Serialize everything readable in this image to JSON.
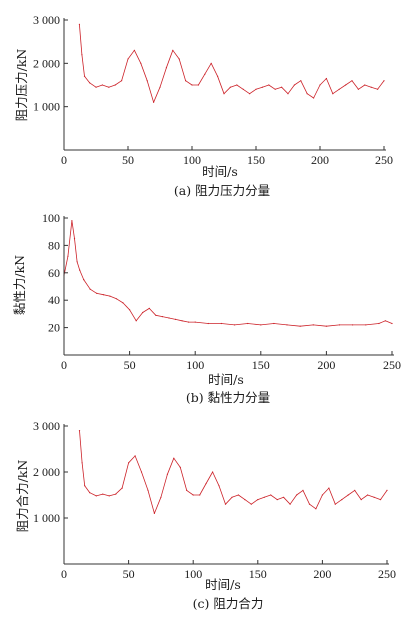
{
  "colors": {
    "series": "#cc2229",
    "axis": "#333333"
  },
  "chart_data": [
    {
      "type": "line",
      "caption": "(a) 阻力压力分量",
      "xlabel": "时间/s",
      "ylabel": "阻力压力/kN",
      "xlim": [
        0,
        250
      ],
      "ylim": [
        0,
        3000
      ],
      "xticks": [
        "0",
        "50",
        "100",
        "150",
        "200",
        "250"
      ],
      "yticks": [
        "1 000",
        "2 000",
        "3 000"
      ],
      "ytick_values": [
        1000,
        2000,
        3000
      ],
      "series": [
        {
          "x": [
            12,
            14,
            16,
            20,
            25,
            30,
            35,
            40,
            45,
            50,
            55,
            60,
            65,
            70,
            75,
            80,
            85,
            90,
            95,
            100,
            105,
            110,
            115,
            120,
            125,
            130,
            135,
            140,
            145,
            150,
            155,
            160,
            165,
            170,
            175,
            180,
            185,
            190,
            195,
            200,
            205,
            210,
            215,
            220,
            225,
            230,
            235,
            240,
            245,
            250
          ],
          "y": [
            2900,
            2200,
            1700,
            1550,
            1450,
            1500,
            1450,
            1500,
            1600,
            2100,
            2300,
            2000,
            1600,
            1100,
            1450,
            1900,
            2300,
            2100,
            1600,
            1500,
            1500,
            1750,
            2000,
            1700,
            1300,
            1450,
            1500,
            1400,
            1300,
            1400,
            1450,
            1500,
            1400,
            1450,
            1300,
            1500,
            1600,
            1300,
            1200,
            1500,
            1650,
            1300,
            1400,
            1500,
            1600,
            1400,
            1500,
            1450,
            1400,
            1600
          ]
        }
      ]
    },
    {
      "type": "line",
      "caption": "(b) 黏性力分量",
      "xlabel": "时间/s",
      "ylabel": "黏性力/kN",
      "xlim": [
        0,
        250
      ],
      "ylim": [
        0,
        100
      ],
      "xticks": [
        "0",
        "50",
        "100",
        "150",
        "200",
        "250"
      ],
      "yticks": [
        "20",
        "40",
        "60",
        "80",
        "100"
      ],
      "ytick_values": [
        20,
        40,
        60,
        80,
        100
      ],
      "series": [
        {
          "x": [
            0,
            3,
            6,
            8,
            10,
            12,
            15,
            20,
            25,
            30,
            35,
            40,
            45,
            50,
            55,
            60,
            65,
            70,
            75,
            80,
            85,
            90,
            95,
            100,
            110,
            120,
            130,
            140,
            150,
            160,
            170,
            180,
            190,
            200,
            210,
            220,
            230,
            240,
            245,
            250
          ],
          "y": [
            58,
            72,
            98,
            85,
            68,
            62,
            55,
            48,
            45,
            44,
            43,
            41,
            38,
            33,
            25,
            31,
            34,
            29,
            28,
            27,
            26,
            25,
            24,
            24,
            23,
            23,
            22,
            23,
            22,
            23,
            22,
            21,
            22,
            21,
            22,
            22,
            22,
            23,
            25,
            23
          ]
        }
      ]
    },
    {
      "type": "line",
      "caption": "(c) 阻力合力",
      "xlabel": "时间/s",
      "ylabel": "阻力合力/kN",
      "xlim": [
        0,
        250
      ],
      "ylim": [
        0,
        3000
      ],
      "xticks": [
        "0",
        "50",
        "100",
        "150",
        "200",
        "250"
      ],
      "yticks": [
        "1 000",
        "2 000",
        "3 000"
      ],
      "ytick_values": [
        1000,
        2000,
        3000
      ],
      "series": [
        {
          "x": [
            12,
            14,
            16,
            20,
            25,
            30,
            35,
            40,
            45,
            50,
            55,
            60,
            65,
            70,
            75,
            80,
            85,
            90,
            95,
            100,
            105,
            110,
            115,
            120,
            125,
            130,
            135,
            140,
            145,
            150,
            155,
            160,
            165,
            170,
            175,
            180,
            185,
            190,
            195,
            200,
            205,
            210,
            215,
            220,
            225,
            230,
            235,
            240,
            245,
            250
          ],
          "y": [
            2900,
            2200,
            1700,
            1550,
            1480,
            1520,
            1480,
            1520,
            1650,
            2200,
            2350,
            2000,
            1600,
            1100,
            1450,
            1950,
            2300,
            2100,
            1600,
            1500,
            1500,
            1750,
            2000,
            1700,
            1300,
            1450,
            1500,
            1400,
            1300,
            1400,
            1450,
            1500,
            1400,
            1450,
            1300,
            1500,
            1600,
            1300,
            1200,
            1500,
            1650,
            1300,
            1400,
            1500,
            1600,
            1400,
            1500,
            1450,
            1400,
            1600
          ]
        }
      ]
    }
  ]
}
